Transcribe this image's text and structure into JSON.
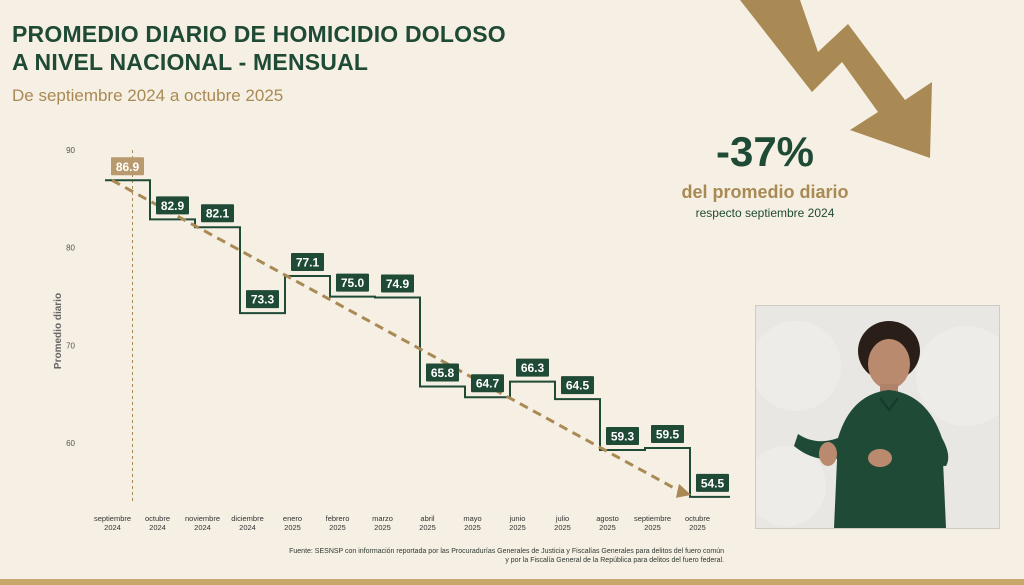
{
  "title_line1": "PROMEDIO DIARIO DE HOMICIDIO DOLOSO",
  "title_line2": "A NIVEL NACIONAL - MENSUAL",
  "subtitle": "De septiembre 2024 a octubre 2025",
  "stat": {
    "value": "-37%",
    "label": "del promedio diario",
    "sublabel": "respecto septiembre 2024"
  },
  "source_line1": "Fuente: SESNSP con información reportada por las Procuradurías Generales de Justicia y Fiscalías Generales para delitos del fuero común",
  "source_line2": "y por la Fiscalía General de la República para delitos del fuero federal.",
  "colors": {
    "dark_green": "#1f4a36",
    "gold": "#a98a54",
    "highlight": "#b89a6e",
    "background": "#f6efe3"
  },
  "chart_data": {
    "type": "line",
    "ylabel": "Promedio diario",
    "ylim": [
      55,
      90
    ],
    "yticks": [
      60,
      70,
      80,
      90
    ],
    "categories": [
      [
        "septiembre",
        "2024"
      ],
      [
        "octubre",
        "2024"
      ],
      [
        "noviembre",
        "2024"
      ],
      [
        "diciembre",
        "2024"
      ],
      [
        "enero",
        "2025"
      ],
      [
        "febrero",
        "2025"
      ],
      [
        "marzo",
        "2025"
      ],
      [
        "abril",
        "2025"
      ],
      [
        "mayo",
        "2025"
      ],
      [
        "junio",
        "2025"
      ],
      [
        "julio",
        "2025"
      ],
      [
        "agosto",
        "2025"
      ],
      [
        "septiembre",
        "2025"
      ],
      [
        "octubre",
        "2025"
      ]
    ],
    "values": [
      86.9,
      82.9,
      82.1,
      73.3,
      77.1,
      75.0,
      74.9,
      65.8,
      64.7,
      66.3,
      64.5,
      59.3,
      59.5,
      54.5
    ],
    "labels": [
      "86.9",
      "82.9",
      "82.1",
      "73.3",
      "77.1",
      "75.0",
      "74.9",
      "65.8",
      "64.7",
      "66.3",
      "64.5",
      "59.3",
      "59.5",
      "54.5"
    ],
    "style": "step",
    "trend_line": {
      "from_value": 86.9,
      "to_value": 54.5
    }
  }
}
